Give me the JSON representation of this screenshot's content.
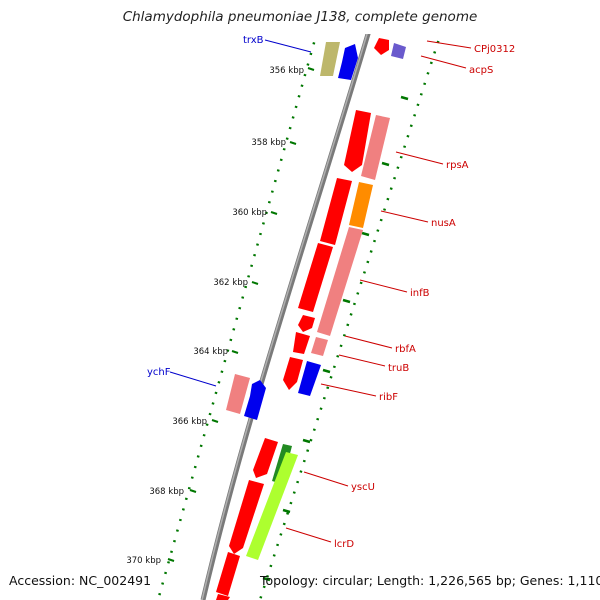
{
  "title": "Chlamydophila pneumoniae J138, complete genome",
  "accession": "Accession: NC_002491",
  "topology": "Topology: circular; Length: 1,226,565 bp; Genes: 1,110",
  "scale_labels": [
    "356 kbp",
    "358 kbp",
    "360 kbp",
    "362 kbp",
    "364 kbp",
    "366 kbp",
    "368 kbp",
    "370 kbp"
  ],
  "genes": [
    {
      "name": "trxB",
      "color": "#0000cc"
    },
    {
      "name": "ychF",
      "color": "#0000cc"
    },
    {
      "name": "CPj0312",
      "color": "#cc0000"
    },
    {
      "name": "acpS",
      "color": "#cc0000"
    },
    {
      "name": "rpsA",
      "color": "#cc0000"
    },
    {
      "name": "nusA",
      "color": "#cc0000"
    },
    {
      "name": "infB",
      "color": "#cc0000"
    },
    {
      "name": "rbfA",
      "color": "#cc0000"
    },
    {
      "name": "truB",
      "color": "#cc0000"
    },
    {
      "name": "ribF",
      "color": "#cc0000"
    },
    {
      "name": "yscU",
      "color": "#cc0000"
    },
    {
      "name": "lcrD",
      "color": "#cc0000"
    }
  ],
  "colors": {
    "backbone": "#808080",
    "tick": "#007700",
    "forward_strand": "#ff0000",
    "pale_red": "#f08080",
    "blue": "#0000ee",
    "orange": "#ff8c00",
    "lime": "#adff2f",
    "dark_green": "#228b22",
    "olive": "#bdb76b",
    "slate": "#7b68ee"
  }
}
